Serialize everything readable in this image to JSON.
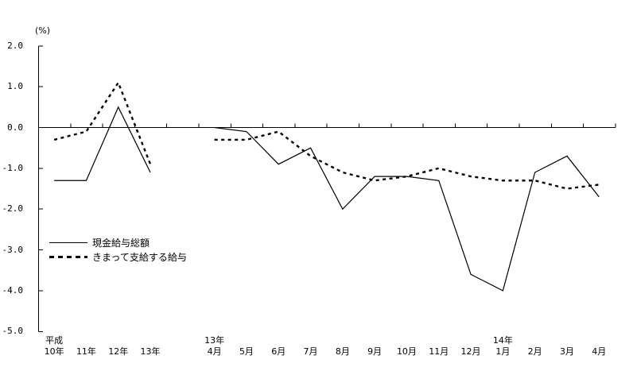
{
  "figure": {
    "background_color": "#ffffff",
    "line_color": "#000000"
  },
  "chart_data": {
    "type": "line",
    "title": "",
    "ylabel": "(%)",
    "xlabel": "",
    "ylim": [
      -5.0,
      2.0
    ],
    "yticks": [
      "2.0",
      "1.0",
      "0.0",
      "-1.0",
      "-2.0",
      "-3.0",
      "-4.0",
      "-5.0"
    ],
    "grid": false,
    "legend_position": "middle-left",
    "x_slots": [
      {
        "label": "10年",
        "era": "平成"
      },
      {
        "label": "11年"
      },
      {
        "label": "12年"
      },
      {
        "label": "13年"
      },
      null,
      {
        "label": "4月",
        "era": "13年"
      },
      {
        "label": "5月"
      },
      {
        "label": "6月"
      },
      {
        "label": "7月"
      },
      {
        "label": "8月"
      },
      {
        "label": "9月"
      },
      {
        "label": "10月"
      },
      {
        "label": "11月"
      },
      {
        "label": "12月"
      },
      {
        "label": "1月",
        "era": "14年"
      },
      {
        "label": "2月"
      },
      {
        "label": "3月"
      },
      {
        "label": "4月"
      }
    ],
    "series": [
      {
        "name": "現金給与総額",
        "style": "solid",
        "values": [
          -1.3,
          -1.3,
          0.5,
          -1.1,
          null,
          0.0,
          -0.1,
          -0.9,
          -0.5,
          -2.0,
          -1.2,
          -1.2,
          -1.3,
          -3.6,
          -4.0,
          -1.1,
          -0.7,
          -1.7
        ]
      },
      {
        "name": "きまって支給する給与",
        "style": "dotted",
        "values": [
          -0.3,
          -0.1,
          1.1,
          -0.9,
          null,
          -0.3,
          -0.3,
          -0.1,
          -0.7,
          -1.1,
          -1.3,
          -1.2,
          -1.0,
          -1.2,
          -1.3,
          -1.3,
          -1.5,
          -1.4
        ]
      }
    ]
  }
}
